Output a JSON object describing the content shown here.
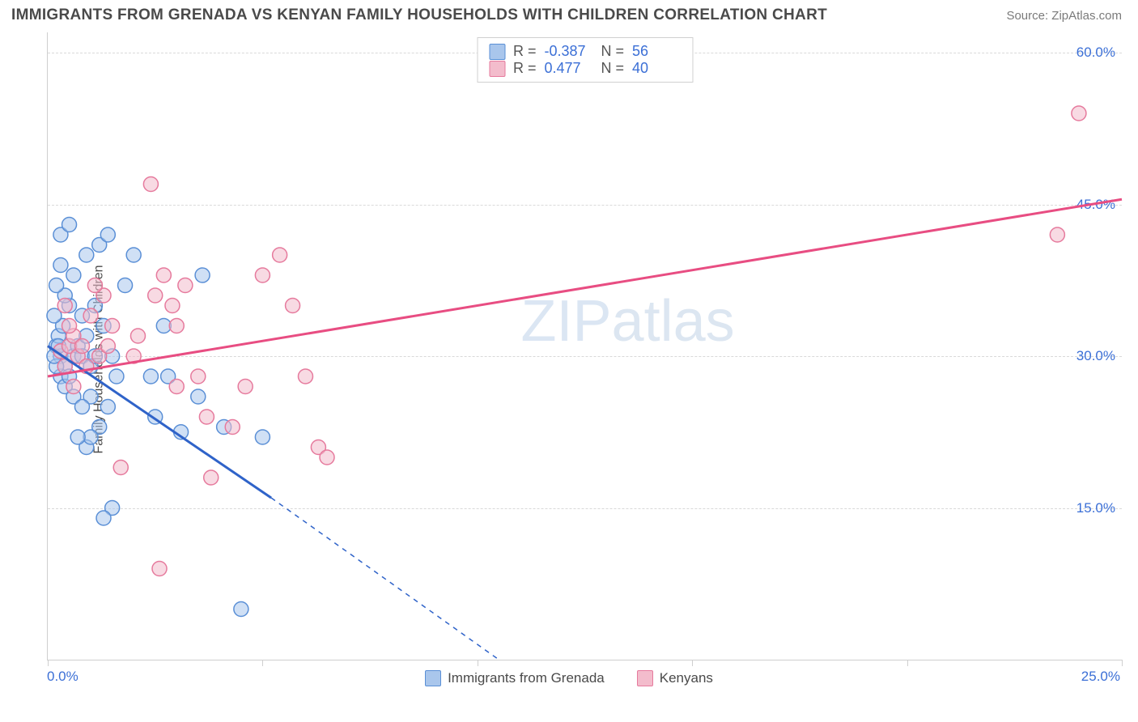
{
  "header": {
    "title": "IMMIGRANTS FROM GRENADA VS KENYAN FAMILY HOUSEHOLDS WITH CHILDREN CORRELATION CHART",
    "source": "Source: ZipAtlas.com"
  },
  "watermark": {
    "part1": "ZIP",
    "part2": "atlas"
  },
  "chart": {
    "type": "scatter",
    "ylabel": "Family Households with Children",
    "xlim": [
      0,
      25
    ],
    "ylim": [
      0,
      62
    ],
    "xticks": [
      0,
      5,
      10,
      15,
      20,
      25
    ],
    "xtick_labels": [
      "0.0%",
      "",
      "",
      "",
      "",
      "25.0%"
    ],
    "yticks": [
      15,
      30,
      45,
      60
    ],
    "ytick_labels": [
      "15.0%",
      "30.0%",
      "45.0%",
      "60.0%"
    ],
    "grid_color": "#d9d9d9",
    "axis_color": "#cfcfcf",
    "background_color": "#ffffff",
    "tick_label_color": "#3b6fd6",
    "marker_radius": 9,
    "marker_opacity": 0.55,
    "series": [
      {
        "name": "Immigrants from Grenada",
        "key": "grenada",
        "color_fill": "#a9c6ec",
        "color_stroke": "#5a8fd6",
        "stats": {
          "r": "-0.387",
          "n": "56"
        },
        "trend": {
          "x1": 0,
          "y1": 31,
          "x2": 10.5,
          "y2": 0,
          "solid_until_x": 5.2,
          "solid_until_y": 16
        },
        "trend_color": "#2f63c9",
        "points": [
          [
            0.2,
            31
          ],
          [
            0.3,
            30
          ],
          [
            0.25,
            32
          ],
          [
            0.4,
            29
          ],
          [
            0.35,
            33
          ],
          [
            0.5,
            31
          ],
          [
            0.15,
            34
          ],
          [
            0.3,
            28
          ],
          [
            0.4,
            27
          ],
          [
            0.2,
            29
          ],
          [
            0.6,
            30
          ],
          [
            0.5,
            35
          ],
          [
            0.7,
            31
          ],
          [
            0.8,
            30
          ],
          [
            0.6,
            26
          ],
          [
            0.5,
            28
          ],
          [
            0.9,
            32
          ],
          [
            1.0,
            29
          ],
          [
            1.1,
            30
          ],
          [
            0.4,
            36
          ],
          [
            0.6,
            38
          ],
          [
            0.9,
            40
          ],
          [
            1.2,
            41
          ],
          [
            1.4,
            42
          ],
          [
            1.1,
            35
          ],
          [
            1.3,
            33
          ],
          [
            1.5,
            30
          ],
          [
            1.6,
            28
          ],
          [
            1.8,
            37
          ],
          [
            2.0,
            40
          ],
          [
            1.0,
            26
          ],
          [
            0.8,
            25
          ],
          [
            1.4,
            25
          ],
          [
            1.2,
            23
          ],
          [
            0.9,
            21
          ],
          [
            1.0,
            22
          ],
          [
            0.7,
            22
          ],
          [
            1.5,
            15
          ],
          [
            1.3,
            14
          ],
          [
            2.4,
            28
          ],
          [
            2.8,
            28
          ],
          [
            2.5,
            24
          ],
          [
            3.1,
            22.5
          ],
          [
            3.5,
            26
          ],
          [
            3.6,
            38
          ],
          [
            4.1,
            23
          ],
          [
            4.5,
            5
          ],
          [
            5.0,
            22
          ],
          [
            2.7,
            33
          ],
          [
            0.3,
            42
          ],
          [
            0.5,
            43
          ],
          [
            0.8,
            34
          ],
          [
            0.2,
            37
          ],
          [
            0.3,
            39
          ],
          [
            0.15,
            30
          ],
          [
            0.25,
            31
          ]
        ]
      },
      {
        "name": "Kenyans",
        "key": "kenyans",
        "color_fill": "#f3bccc",
        "color_stroke": "#e67a9d",
        "stats": {
          "r": "0.477",
          "n": "40"
        },
        "trend": {
          "x1": 0,
          "y1": 28,
          "x2": 25,
          "y2": 45.5
        },
        "trend_color": "#e84d82",
        "points": [
          [
            0.3,
            30.5
          ],
          [
            0.5,
            31
          ],
          [
            0.4,
            29
          ],
          [
            0.6,
            32
          ],
          [
            0.7,
            30
          ],
          [
            0.5,
            33
          ],
          [
            0.8,
            31
          ],
          [
            0.4,
            35
          ],
          [
            0.9,
            29
          ],
          [
            0.6,
            27
          ],
          [
            1.0,
            34
          ],
          [
            1.2,
            30
          ],
          [
            1.4,
            31
          ],
          [
            1.5,
            33
          ],
          [
            1.3,
            36
          ],
          [
            1.1,
            37
          ],
          [
            2.0,
            30
          ],
          [
            2.1,
            32
          ],
          [
            2.4,
            47
          ],
          [
            1.7,
            19
          ],
          [
            2.5,
            36
          ],
          [
            2.7,
            38
          ],
          [
            2.9,
            35
          ],
          [
            3.2,
            37
          ],
          [
            3.0,
            27
          ],
          [
            3.5,
            28
          ],
          [
            3.7,
            24
          ],
          [
            3.8,
            18
          ],
          [
            4.3,
            23
          ],
          [
            4.6,
            27
          ],
          [
            5.0,
            38
          ],
          [
            5.4,
            40
          ],
          [
            5.7,
            35
          ],
          [
            6.0,
            28
          ],
          [
            6.3,
            21
          ],
          [
            6.5,
            20
          ],
          [
            2.6,
            9
          ],
          [
            23.5,
            42
          ],
          [
            24.0,
            54
          ],
          [
            3.0,
            33
          ]
        ]
      }
    ]
  },
  "legend": {
    "items": [
      {
        "label": "Immigrants from Grenada",
        "fill": "#a9c6ec",
        "stroke": "#5a8fd6"
      },
      {
        "label": "Kenyans",
        "fill": "#f3bccc",
        "stroke": "#e67a9d"
      }
    ]
  }
}
